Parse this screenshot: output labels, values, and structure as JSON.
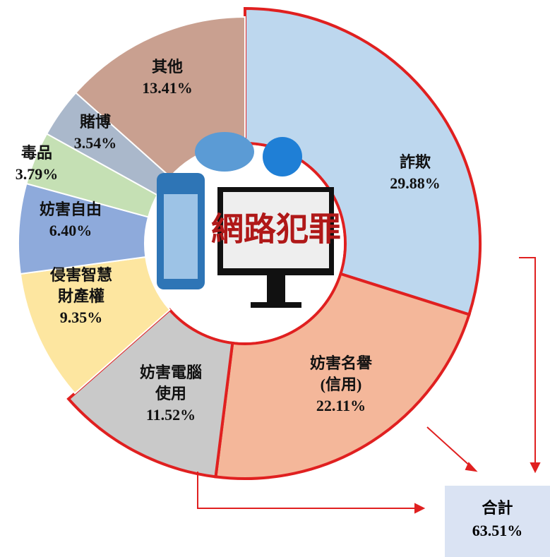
{
  "chart_data": {
    "type": "donut",
    "center_text": "網路犯罪",
    "categories": [
      "詐欺",
      "妨害名譽\n(信用)",
      "妨害電腦\n使用",
      "侵害智慧\n財產權",
      "妨害自由",
      "毒品",
      "賭博",
      "其他"
    ],
    "values": [
      29.88,
      22.11,
      11.52,
      9.35,
      6.4,
      3.79,
      3.54,
      13.41
    ],
    "value_labels": [
      "29.88%",
      "22.11%",
      "11.52%",
      "9.35%",
      "6.40%",
      "3.79%",
      "3.54%",
      "13.41%"
    ],
    "colors": [
      "#bdd7ee",
      "#f4b79a",
      "#c9c9c9",
      "#fde6a0",
      "#8eaadb",
      "#c5e0b4",
      "#aab8cb",
      "#c9a090"
    ],
    "edge_colors": [
      "#e02020",
      "#e02020",
      "#e02020",
      null,
      null,
      null,
      null,
      null
    ],
    "annotation": {
      "label": "合計",
      "value": 63.51,
      "value_label": "63.51%"
    }
  }
}
